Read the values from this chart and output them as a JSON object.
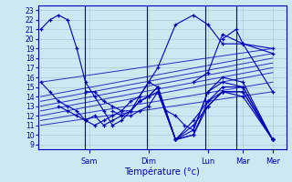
{
  "xlabel": "Température (°c)",
  "ylim": [
    8.5,
    23.5
  ],
  "yticks": [
    9,
    10,
    11,
    12,
    13,
    14,
    15,
    16,
    17,
    18,
    19,
    20,
    21,
    22,
    23
  ],
  "bg_color": "#cde8f0",
  "grid_color": "#aaccdd",
  "line_color": "#0000bb",
  "marker": "+",
  "xlim": [
    -0.05,
    4.55
  ],
  "day_labels": [
    "Sam",
    "Dim",
    "Lun",
    "Mar",
    "Mer"
  ],
  "day_x": [
    0.9,
    2.0,
    3.1,
    3.75,
    4.3
  ],
  "vlines": [
    0.82,
    1.97,
    3.05,
    3.62
  ],
  "forecast_series": [
    {
      "x": [
        0.0,
        0.17,
        0.33,
        0.5,
        0.67,
        0.83,
        1.0,
        1.17,
        1.33,
        1.5,
        1.67,
        1.83,
        2.0,
        2.17,
        2.5,
        2.83,
        3.1,
        3.37,
        3.75,
        4.3
      ],
      "y": [
        21.0,
        22.0,
        22.5,
        22.0,
        19.0,
        15.5,
        14.0,
        12.5,
        11.0,
        11.5,
        12.5,
        14.0,
        15.5,
        17.0,
        21.5,
        22.5,
        21.5,
        19.5,
        19.5,
        18.5
      ]
    },
    {
      "x": [
        0.0,
        0.17,
        0.33,
        0.5,
        0.67,
        0.83,
        1.0,
        1.17,
        1.33,
        1.5,
        1.67,
        1.83,
        2.0,
        2.17,
        2.5,
        2.83,
        3.1,
        3.37,
        3.75,
        4.3
      ],
      "y": [
        15.5,
        14.5,
        13.5,
        13.0,
        12.5,
        11.5,
        11.0,
        11.5,
        12.0,
        12.5,
        13.5,
        14.0,
        15.5,
        15.0,
        9.5,
        11.5,
        13.5,
        14.5,
        14.0,
        9.5
      ]
    },
    {
      "x": [
        0.33,
        0.5,
        0.67,
        0.83,
        1.0,
        1.17,
        1.33,
        1.5,
        1.67,
        1.83,
        2.0,
        2.17,
        2.5,
        2.83,
        3.1,
        3.37,
        3.75,
        4.3
      ],
      "y": [
        13.0,
        12.5,
        12.0,
        11.5,
        12.0,
        11.0,
        11.5,
        12.0,
        12.5,
        13.5,
        14.0,
        15.0,
        9.5,
        11.0,
        13.0,
        14.5,
        14.5,
        9.5
      ]
    },
    {
      "x": [
        0.83,
        1.0,
        1.17,
        1.33,
        1.5,
        1.67,
        1.83,
        2.0,
        2.17,
        2.5,
        2.83,
        3.1,
        3.37,
        3.75,
        4.3
      ],
      "y": [
        14.5,
        14.5,
        13.5,
        13.0,
        12.5,
        12.5,
        13.5,
        14.0,
        14.5,
        9.5,
        10.0,
        13.0,
        14.5,
        14.5,
        9.5
      ]
    },
    {
      "x": [
        1.33,
        1.5,
        1.67,
        1.83,
        2.0,
        2.17,
        2.5,
        2.83,
        3.1,
        3.37,
        3.75,
        4.3
      ],
      "y": [
        12.5,
        12.0,
        12.0,
        12.5,
        13.0,
        14.5,
        9.5,
        10.0,
        13.5,
        15.0,
        15.0,
        9.5
      ]
    },
    {
      "x": [
        1.83,
        2.0,
        2.17,
        2.5,
        2.83,
        3.1,
        3.37,
        3.75,
        4.3
      ],
      "y": [
        13.5,
        14.0,
        15.0,
        9.5,
        10.5,
        14.5,
        15.5,
        15.0,
        9.5
      ]
    },
    {
      "x": [
        2.33,
        2.5,
        2.67,
        2.83,
        3.1,
        3.37,
        3.75,
        4.3
      ],
      "y": [
        12.5,
        12.0,
        11.0,
        10.5,
        14.5,
        16.0,
        15.5,
        9.5
      ]
    },
    {
      "x": [
        2.83,
        3.1,
        3.37,
        3.75,
        4.3
      ],
      "y": [
        15.5,
        16.5,
        20.5,
        19.5,
        14.5
      ]
    },
    {
      "x": [
        3.37,
        3.62,
        3.75,
        4.3
      ],
      "y": [
        20.0,
        21.0,
        19.5,
        19.0
      ]
    }
  ],
  "straight_lines": [
    {
      "x": [
        0.0,
        4.3
      ],
      "y": [
        15.5,
        19.0
      ]
    },
    {
      "x": [
        0.0,
        4.3
      ],
      "y": [
        14.0,
        18.5
      ]
    },
    {
      "x": [
        0.0,
        4.3
      ],
      "y": [
        13.5,
        18.0
      ]
    },
    {
      "x": [
        0.0,
        4.3
      ],
      "y": [
        13.0,
        17.5
      ]
    },
    {
      "x": [
        0.0,
        4.3
      ],
      "y": [
        12.5,
        17.0
      ]
    },
    {
      "x": [
        0.0,
        4.3
      ],
      "y": [
        12.0,
        16.5
      ]
    },
    {
      "x": [
        0.0,
        4.3
      ],
      "y": [
        11.5,
        15.5
      ]
    },
    {
      "x": [
        0.0,
        4.3
      ],
      "y": [
        11.0,
        14.5
      ]
    }
  ]
}
